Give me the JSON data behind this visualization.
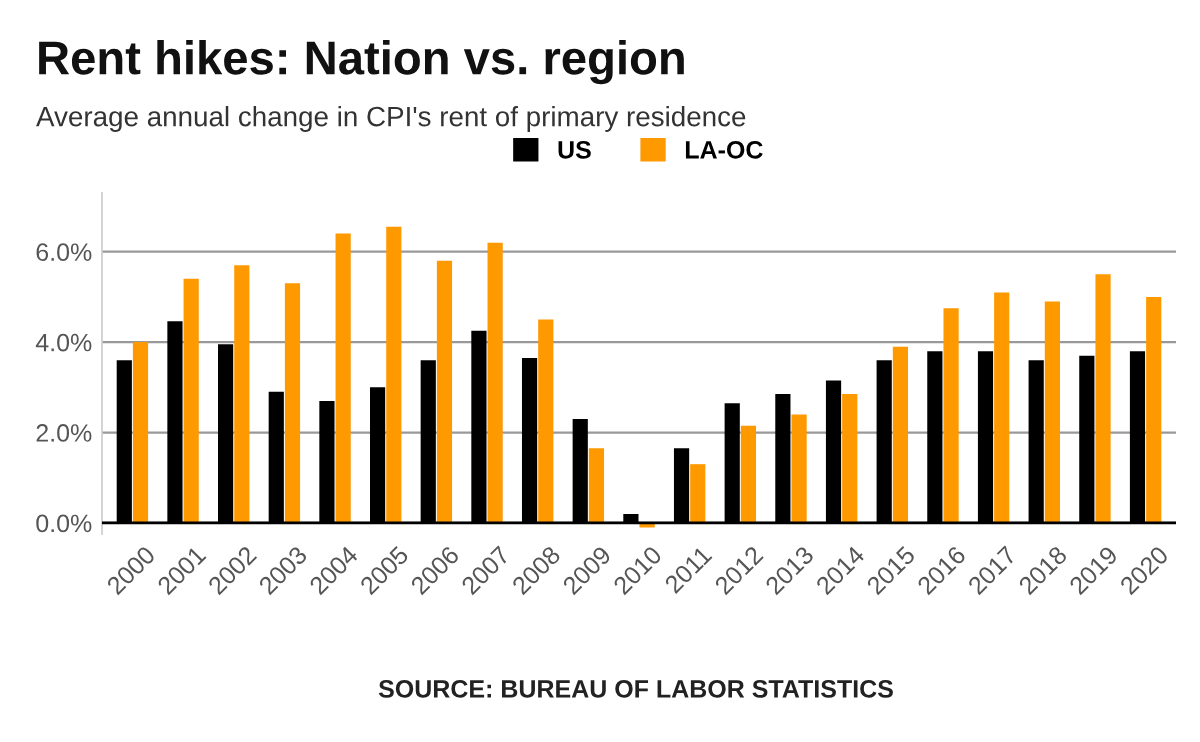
{
  "chart_data": {
    "type": "bar",
    "title": "Rent hikes: Nation vs. region",
    "subtitle": "Average annual change in CPI's rent of primary residence",
    "categories": [
      "2000",
      "2001",
      "2002",
      "2003",
      "2004",
      "2005",
      "2006",
      "2007",
      "2008",
      "2009",
      "2010",
      "2011",
      "2012",
      "2013",
      "2014",
      "2015",
      "2016",
      "2017",
      "2018",
      "2019",
      "2020"
    ],
    "series": [
      {
        "name": "US",
        "color": "#000000",
        "values": [
          3.6,
          4.46,
          3.95,
          2.9,
          2.7,
          3.0,
          3.6,
          4.25,
          3.65,
          2.3,
          0.2,
          1.65,
          2.65,
          2.85,
          3.15,
          3.6,
          3.8,
          3.8,
          3.6,
          3.7,
          3.8
        ]
      },
      {
        "name": "LA-OC",
        "color": "#ff9900",
        "values": [
          4.0,
          5.4,
          5.7,
          5.3,
          6.4,
          6.55,
          5.8,
          6.2,
          4.5,
          1.65,
          -0.1,
          1.3,
          2.15,
          2.4,
          2.85,
          3.9,
          4.75,
          5.1,
          4.9,
          5.5,
          5.0
        ]
      }
    ],
    "ylim": [
      -0.25,
      7.3
    ],
    "yticks": [
      {
        "value": 0,
        "label": "0.0%"
      },
      {
        "value": 2,
        "label": "2.0%"
      },
      {
        "value": 4,
        "label": "4.0%"
      },
      {
        "value": 6,
        "label": "6.0%"
      }
    ],
    "grid": "y",
    "legend": "top",
    "annotations": [
      "SOURCE: BUREAU OF LABOR STATISTICS"
    ]
  }
}
